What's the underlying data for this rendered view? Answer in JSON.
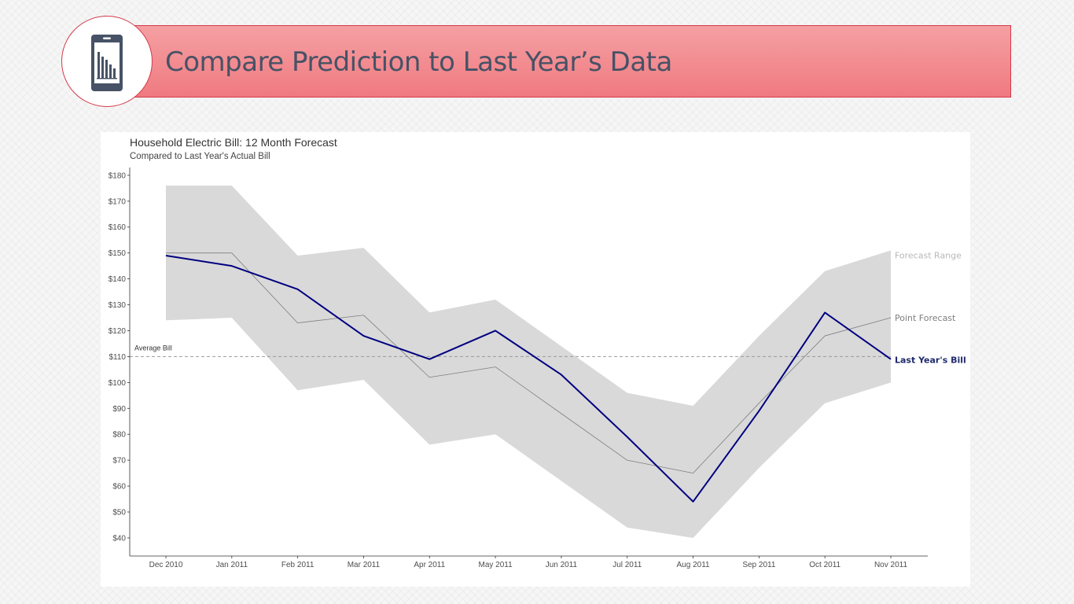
{
  "slide": {
    "title": "Compare Prediction to Last Year’s Data",
    "icon": "mobile-bar-chart-icon",
    "accent_color": "#ef7a80",
    "accent_border": "#d43a4a",
    "title_color": "#475266"
  },
  "chart_data": {
    "type": "line",
    "title": "Household Electric Bill: 12 Month Forecast",
    "subtitle": "Compared to Last Year's Actual Bill",
    "xlabel": "",
    "ylabel": "",
    "categories": [
      "Dec 2010",
      "Jan 2011",
      "Feb 2011",
      "Mar 2011",
      "Apr 2011",
      "May 2011",
      "Jun 2011",
      "Jul 2011",
      "Aug 2011",
      "Sep 2011",
      "Oct 2011",
      "Nov 2011"
    ],
    "ylim": [
      33,
      183
    ],
    "yticks": [
      40,
      50,
      60,
      70,
      80,
      90,
      100,
      110,
      120,
      130,
      140,
      150,
      160,
      170,
      180
    ],
    "ytick_labels": [
      "$40",
      "$50",
      "$60",
      "$70",
      "$80",
      "$90",
      "$100",
      "$110",
      "$120",
      "$130",
      "$140",
      "$150",
      "$160",
      "$170",
      "$180"
    ],
    "grid": false,
    "range": {
      "name": "Forecast Range",
      "lower": [
        124,
        125,
        97,
        101,
        76,
        80,
        62,
        44,
        40,
        67,
        92,
        100
      ],
      "upper": [
        176,
        176,
        149,
        152,
        127,
        132,
        114,
        96,
        91,
        118,
        143,
        151
      ],
      "color": "#d9d9d9"
    },
    "series": [
      {
        "name": "Point Forecast",
        "values": [
          150,
          150,
          123,
          126,
          102,
          106,
          88,
          70,
          65,
          92,
          118,
          125
        ],
        "color": "#7f7f7f"
      },
      {
        "name": "Last Year's Bill",
        "values": [
          149,
          145,
          136,
          118,
          109,
          120,
          103,
          79,
          54,
          89,
          127,
          109
        ],
        "color": "#000080"
      }
    ],
    "reference_line": {
      "label": "Average Bill",
      "value": 110,
      "color": "#999999"
    },
    "series_label_colors": [
      "#b8b8b8",
      "#7f7f7f",
      "#1f2a6b"
    ]
  }
}
